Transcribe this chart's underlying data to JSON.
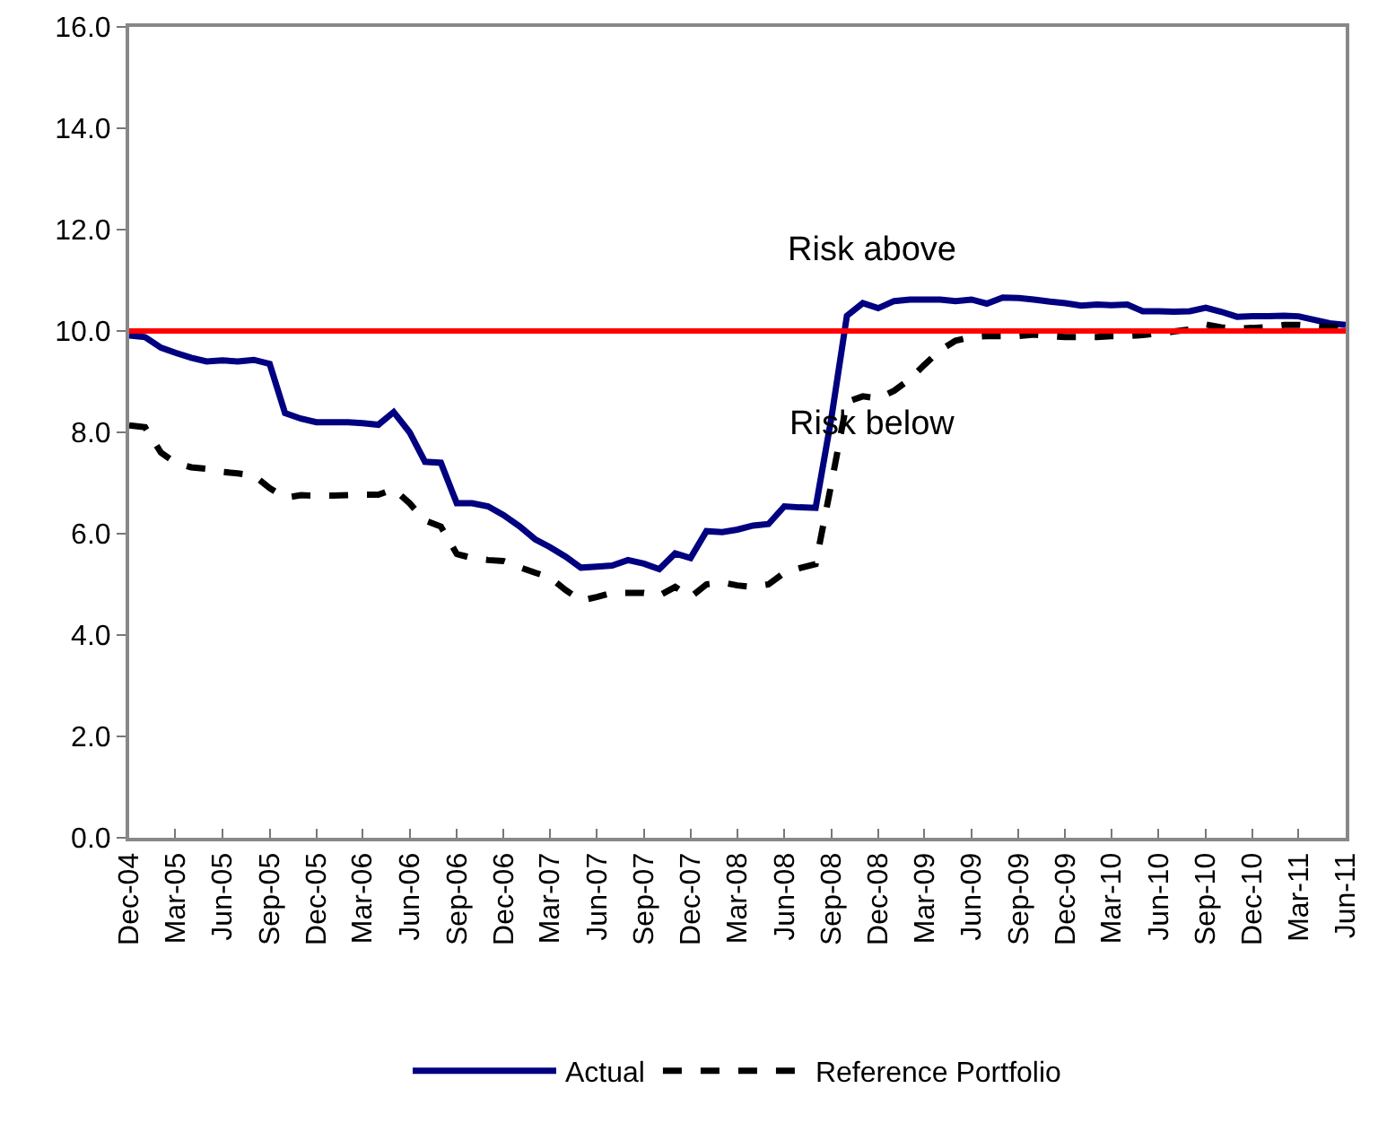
{
  "chart_data": {
    "type": "line",
    "x": [
      "2004-12",
      "2005-01",
      "2005-02",
      "2005-03",
      "2005-04",
      "2005-05",
      "2005-06",
      "2005-07",
      "2005-08",
      "2005-09",
      "2005-10",
      "2005-11",
      "2005-12",
      "2006-01",
      "2006-02",
      "2006-03",
      "2006-04",
      "2006-05",
      "2006-06",
      "2006-07",
      "2006-08",
      "2006-09",
      "2006-10",
      "2006-11",
      "2006-12",
      "2007-01",
      "2007-02",
      "2007-03",
      "2007-04",
      "2007-05",
      "2007-06",
      "2007-07",
      "2007-08",
      "2007-09",
      "2007-10",
      "2007-11",
      "2007-12",
      "2008-01",
      "2008-02",
      "2008-03",
      "2008-04",
      "2008-05",
      "2008-06",
      "2008-07",
      "2008-08",
      "2008-09",
      "2008-10",
      "2008-11",
      "2008-12",
      "2009-01",
      "2009-02",
      "2009-03",
      "2009-04",
      "2009-05",
      "2009-06",
      "2009-07",
      "2009-08",
      "2009-09",
      "2009-10",
      "2009-11",
      "2009-12",
      "2010-01",
      "2010-02",
      "2010-03",
      "2010-04",
      "2010-05",
      "2010-06",
      "2010-07",
      "2010-08",
      "2010-09",
      "2010-10",
      "2010-11",
      "2010-12",
      "2011-01",
      "2011-02",
      "2011-03",
      "2011-04",
      "2011-05",
      "2011-06"
    ],
    "series": [
      {
        "name": "Actual",
        "color": "#000080",
        "line_style": "solid",
        "values": [
          9.91,
          9.88,
          9.67,
          9.57,
          9.47,
          9.4,
          9.42,
          9.4,
          9.43,
          9.35,
          8.38,
          8.27,
          8.2,
          8.2,
          8.2,
          8.18,
          8.15,
          8.4,
          8.0,
          7.42,
          7.4,
          6.6,
          6.6,
          6.54,
          6.37,
          6.15,
          5.89,
          5.74,
          5.55,
          5.33,
          5.35,
          5.37,
          5.48,
          5.41,
          5.3,
          5.61,
          5.52,
          6.05,
          6.03,
          6.08,
          6.16,
          6.19,
          6.54,
          6.52,
          6.51,
          8.3,
          10.3,
          10.55,
          10.45,
          10.59,
          10.62,
          10.62,
          10.62,
          10.59,
          10.62,
          10.54,
          10.66,
          10.65,
          10.62,
          10.58,
          10.55,
          10.5,
          10.52,
          10.51,
          10.52,
          10.39,
          10.39,
          10.38,
          10.39,
          10.46,
          10.38,
          10.28,
          10.29,
          10.29,
          10.3,
          10.29,
          10.22,
          10.15,
          10.12
        ]
      },
      {
        "name": "Reference Portfolio",
        "color": "#000000",
        "line_style": "dashed",
        "values": [
          8.14,
          8.1,
          7.6,
          7.4,
          7.31,
          7.28,
          7.22,
          7.19,
          7.15,
          6.9,
          6.71,
          6.76,
          6.75,
          6.75,
          6.76,
          6.77,
          6.77,
          6.88,
          6.6,
          6.26,
          6.14,
          5.6,
          5.52,
          5.48,
          5.46,
          5.34,
          5.23,
          5.14,
          4.89,
          4.68,
          4.75,
          4.83,
          4.83,
          4.83,
          4.78,
          4.95,
          4.75,
          5.0,
          5.04,
          4.98,
          4.95,
          5.0,
          5.23,
          5.32,
          5.4,
          7.0,
          8.6,
          8.71,
          8.67,
          8.82,
          9.05,
          9.33,
          9.62,
          9.81,
          9.88,
          9.9,
          9.9,
          9.9,
          9.93,
          9.9,
          9.88,
          9.88,
          9.88,
          9.9,
          9.9,
          9.92,
          9.95,
          9.99,
          10.03,
          10.13,
          10.07,
          10.05,
          10.06,
          10.08,
          10.12,
          10.12,
          10.1,
          10.08,
          10.1
        ]
      }
    ],
    "xlim": [
      "2004-12",
      "2011-06"
    ],
    "xticks": [
      {
        "value": "2004-12",
        "label": "Dec-04"
      },
      {
        "value": "2005-03",
        "label": "Mar-05"
      },
      {
        "value": "2005-06",
        "label": "Jun-05"
      },
      {
        "value": "2005-09",
        "label": "Sep-05"
      },
      {
        "value": "2005-12",
        "label": "Dec-05"
      },
      {
        "value": "2006-03",
        "label": "Mar-06"
      },
      {
        "value": "2006-06",
        "label": "Jun-06"
      },
      {
        "value": "2006-09",
        "label": "Sep-06"
      },
      {
        "value": "2006-12",
        "label": "Dec-06"
      },
      {
        "value": "2007-03",
        "label": "Mar-07"
      },
      {
        "value": "2007-06",
        "label": "Jun-07"
      },
      {
        "value": "2007-09",
        "label": "Sep-07"
      },
      {
        "value": "2007-12",
        "label": "Dec-07"
      },
      {
        "value": "2008-03",
        "label": "Mar-08"
      },
      {
        "value": "2008-06",
        "label": "Jun-08"
      },
      {
        "value": "2008-09",
        "label": "Sep-08"
      },
      {
        "value": "2008-12",
        "label": "Dec-08"
      },
      {
        "value": "2009-03",
        "label": "Mar-09"
      },
      {
        "value": "2009-06",
        "label": "Jun-09"
      },
      {
        "value": "2009-09",
        "label": "Sep-09"
      },
      {
        "value": "2009-12",
        "label": "Dec-09"
      },
      {
        "value": "2010-03",
        "label": "Mar-10"
      },
      {
        "value": "2010-06",
        "label": "Jun-10"
      },
      {
        "value": "2010-09",
        "label": "Sep-10"
      },
      {
        "value": "2010-12",
        "label": "Dec-10"
      },
      {
        "value": "2011-03",
        "label": "Mar-11"
      },
      {
        "value": "2011-06",
        "label": "Jun-11"
      }
    ],
    "ylim": [
      0,
      16
    ],
    "yticks": [
      {
        "value": 0,
        "label": "0.0"
      },
      {
        "value": 2,
        "label": "2.0"
      },
      {
        "value": 4,
        "label": "4.0"
      },
      {
        "value": 6,
        "label": "6.0"
      },
      {
        "value": 8,
        "label": "8.0"
      },
      {
        "value": 10,
        "label": "10.0"
      },
      {
        "value": 12,
        "label": "12.0"
      },
      {
        "value": 14,
        "label": "14.0"
      },
      {
        "value": 16,
        "label": "16.0"
      }
    ],
    "ref_lines": [
      {
        "axis": "y",
        "value": 10,
        "color": "#ff0000",
        "line_style": "solid"
      }
    ],
    "annotations": [
      "Risk above",
      "Risk below"
    ],
    "grid": false,
    "marker": "none",
    "legend": "bottom"
  }
}
